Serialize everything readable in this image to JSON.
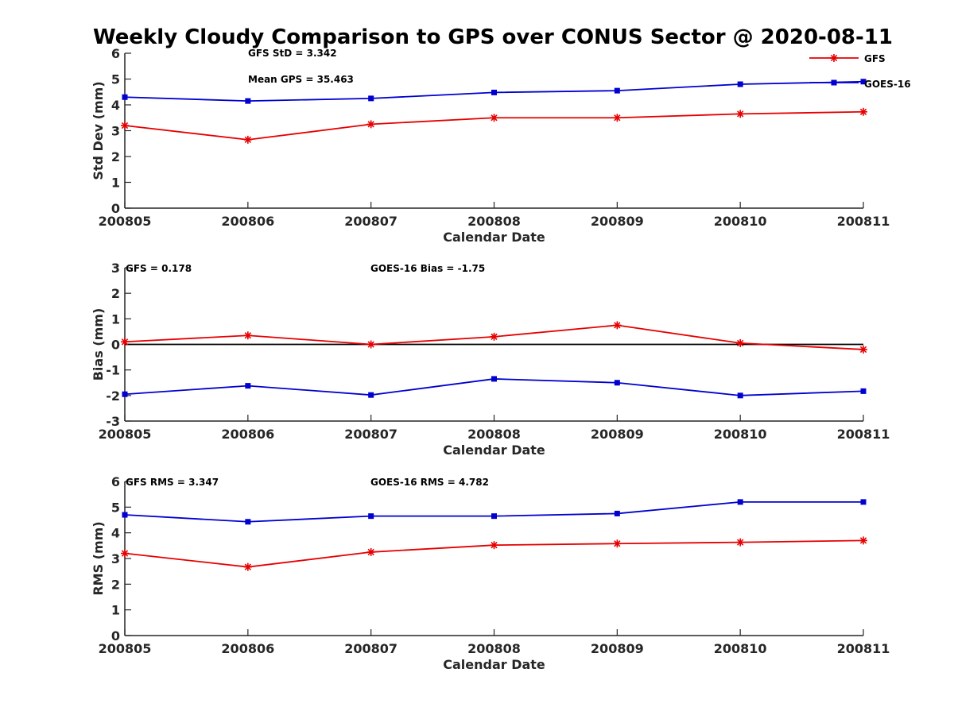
{
  "title": "Weekly Cloudy Comparison to GPS over CONUS Sector @ 2020-08-11",
  "colors": {
    "GFS": "#e60000",
    "GOES-16": "#0000d0",
    "axis": "#262626",
    "zero_line": "#000000"
  },
  "legend": {
    "placement": "top-right",
    "entries": [
      "GFS",
      "GOES-16"
    ]
  },
  "chart_data": [
    {
      "type": "line",
      "title": "",
      "xlabel": "Calendar Date",
      "ylabel": "Std Dev (mm)",
      "categories": [
        "200805",
        "200806",
        "200807",
        "200808",
        "200809",
        "200810",
        "200811"
      ],
      "ylim": [
        0,
        6
      ],
      "yticks": [
        "0",
        "1",
        "2",
        "3",
        "4",
        "5",
        "6"
      ],
      "grid": false,
      "series": [
        {
          "name": "GFS",
          "values": [
            3.2,
            2.65,
            3.25,
            3.5,
            3.5,
            3.65,
            3.73
          ]
        },
        {
          "name": "GOES-16",
          "values": [
            4.3,
            4.15,
            4.25,
            4.48,
            4.55,
            4.8,
            4.9
          ]
        }
      ],
      "annotations": [
        "GFS StD = 3.342",
        "Mean GPS = 35.463"
      ]
    },
    {
      "type": "line",
      "title": "",
      "xlabel": "Calendar Date",
      "ylabel": "Bias (mm)",
      "categories": [
        "200805",
        "200806",
        "200807",
        "200808",
        "200809",
        "200810",
        "200811"
      ],
      "ylim": [
        -3,
        3
      ],
      "yticks": [
        "-3",
        "-2",
        "-1",
        "0",
        "1",
        "2",
        "3"
      ],
      "grid": false,
      "zero_line": true,
      "series": [
        {
          "name": "GFS",
          "values": [
            0.1,
            0.35,
            0.0,
            0.3,
            0.75,
            0.05,
            -0.2
          ]
        },
        {
          "name": "GOES-16",
          "values": [
            -1.95,
            -1.62,
            -1.98,
            -1.35,
            -1.5,
            -2.0,
            -1.83
          ]
        }
      ],
      "annotations": [
        "GFS = 0.178",
        "GOES-16 Bias  = -1.75"
      ]
    },
    {
      "type": "line",
      "title": "",
      "xlabel": "Calendar Date",
      "ylabel": "RMS (mm)",
      "categories": [
        "200805",
        "200806",
        "200807",
        "200808",
        "200809",
        "200810",
        "200811"
      ],
      "ylim": [
        0,
        6
      ],
      "yticks": [
        "0",
        "1",
        "2",
        "3",
        "4",
        "5",
        "6"
      ],
      "grid": false,
      "series": [
        {
          "name": "GFS",
          "values": [
            3.2,
            2.67,
            3.25,
            3.52,
            3.58,
            3.63,
            3.7
          ]
        },
        {
          "name": "GOES-16",
          "values": [
            4.7,
            4.43,
            4.65,
            4.65,
            4.75,
            5.2,
            5.2
          ]
        }
      ],
      "annotations": [
        "GFS RMS = 3.347",
        "GOES-16 RMS = 4.782"
      ]
    }
  ]
}
